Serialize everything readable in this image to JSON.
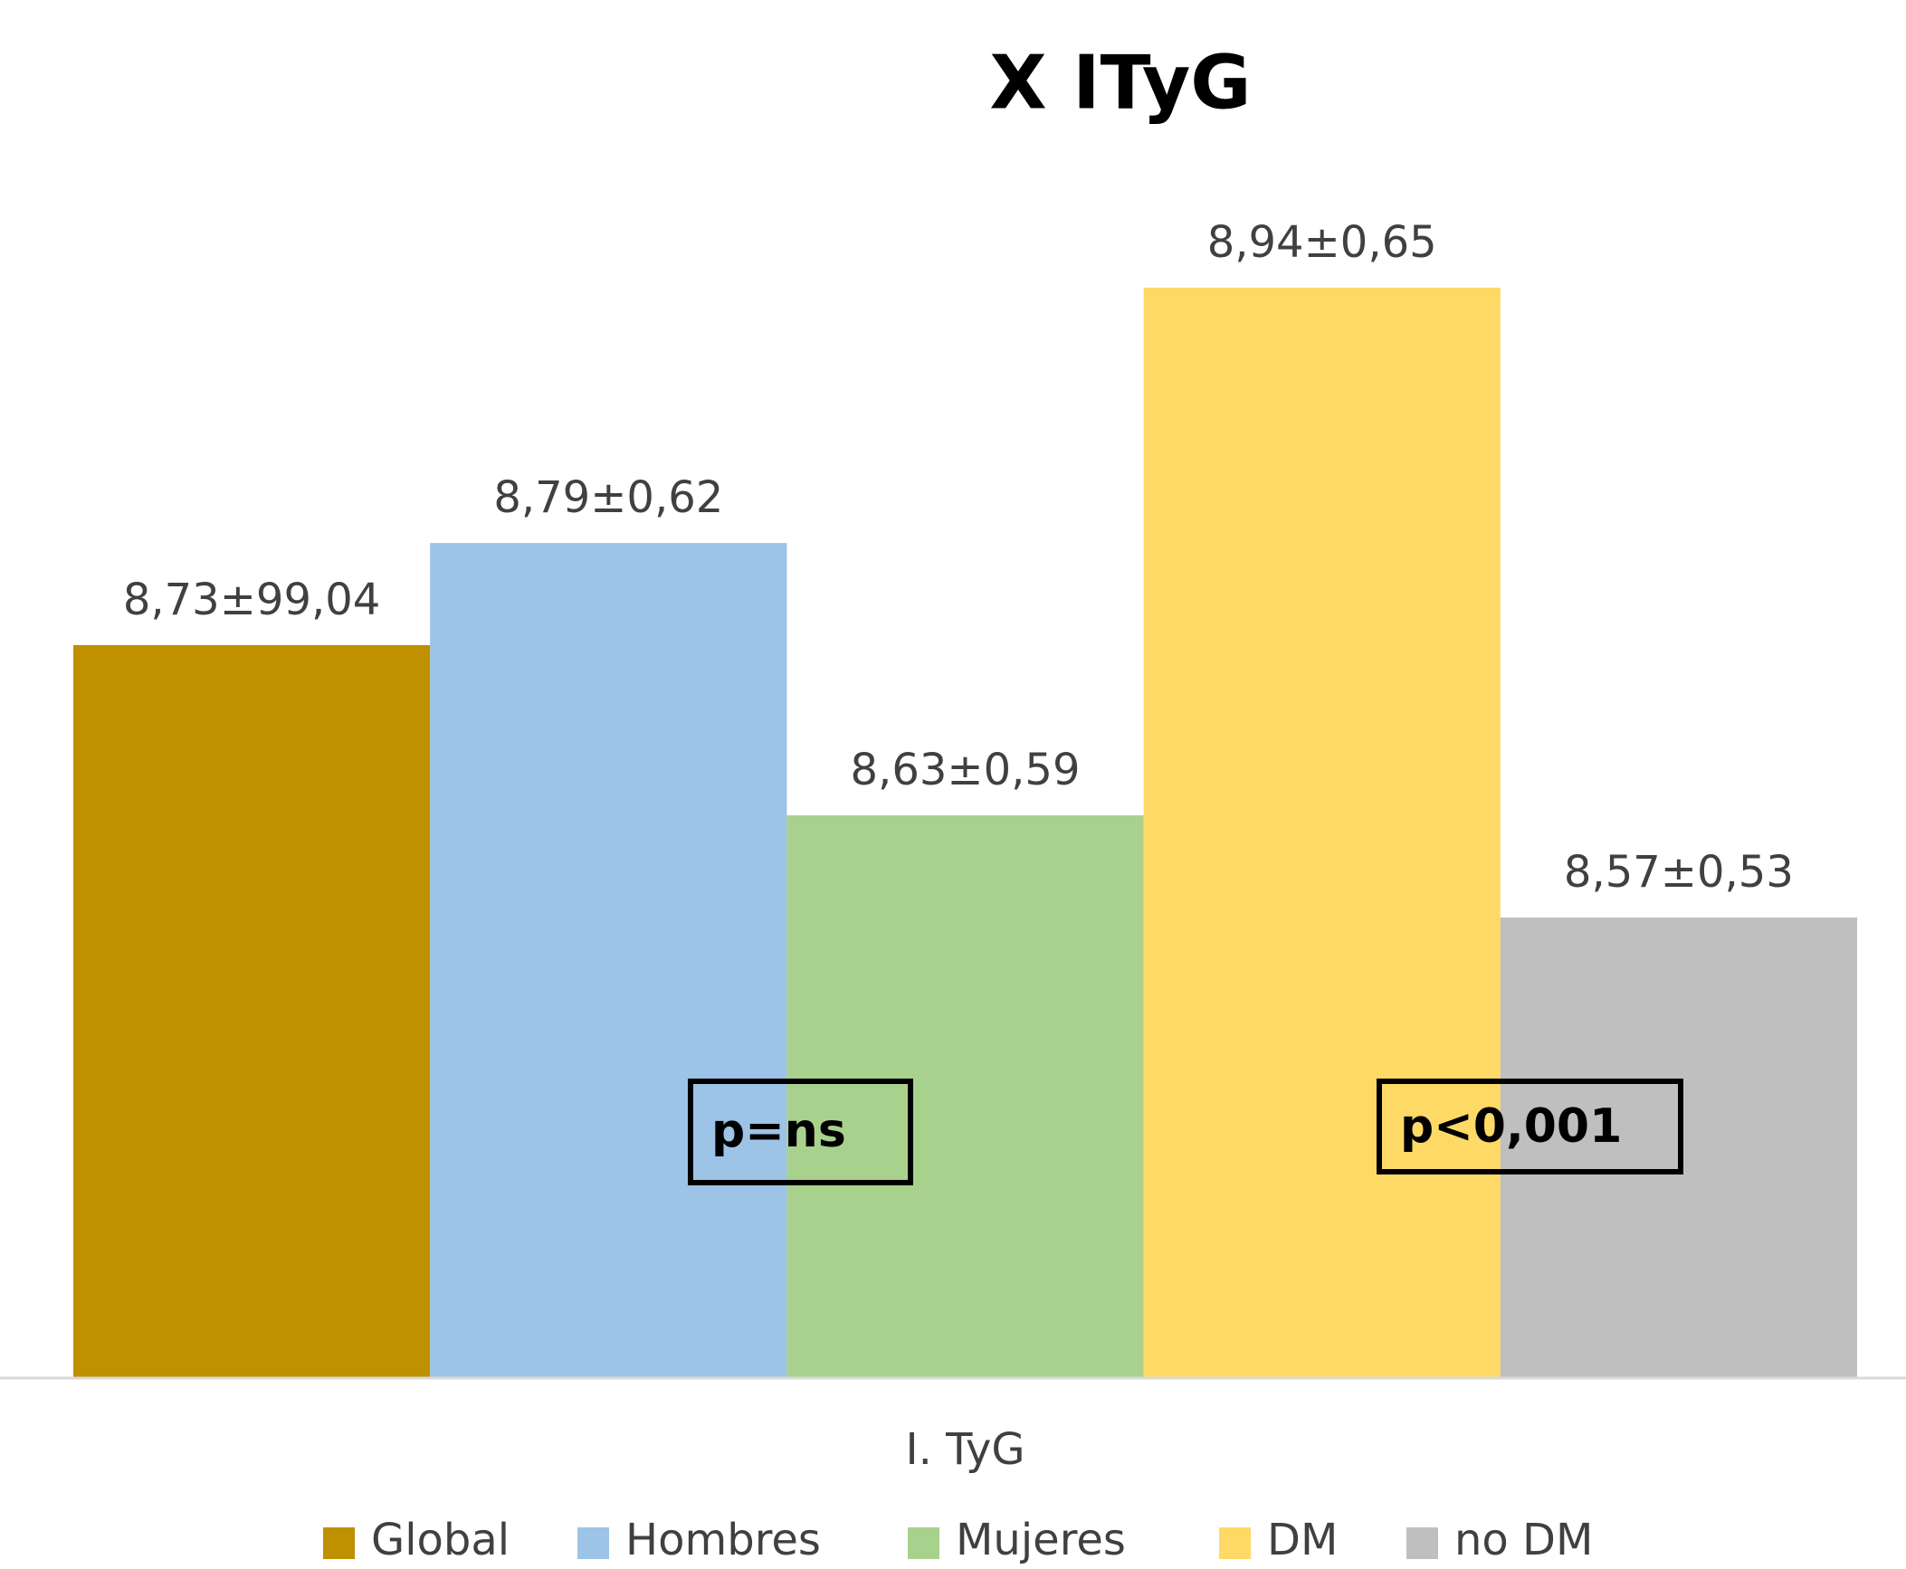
{
  "chart_data": {
    "type": "bar",
    "title": "X ITyG",
    "categories": [
      "I. TyG"
    ],
    "series": [
      {
        "name": "Global",
        "color": "#bf9000",
        "values": [
          8.73
        ],
        "value_labels": [
          "8,73±99,04"
        ]
      },
      {
        "name": "Hombres",
        "color": "#9dc3e6",
        "values": [
          8.79
        ],
        "value_labels": [
          "8,79±0,62"
        ]
      },
      {
        "name": "Mujeres",
        "color": "#a9d18e",
        "values": [
          8.63
        ],
        "value_labels": [
          "8,63±0,59"
        ]
      },
      {
        "name": "DM",
        "color": "#ffd966",
        "values": [
          8.94
        ],
        "value_labels": [
          "8,94±0,65"
        ]
      },
      {
        "name": "no DM",
        "color": "#bfbfbf",
        "values": [
          8.57
        ],
        "value_labels": [
          "8,57±0,53"
        ]
      }
    ],
    "ylim": [
      8.3,
      9.0
    ],
    "annotations": [
      "p=ns",
      "p<0,001"
    ],
    "legend": "bottom"
  }
}
